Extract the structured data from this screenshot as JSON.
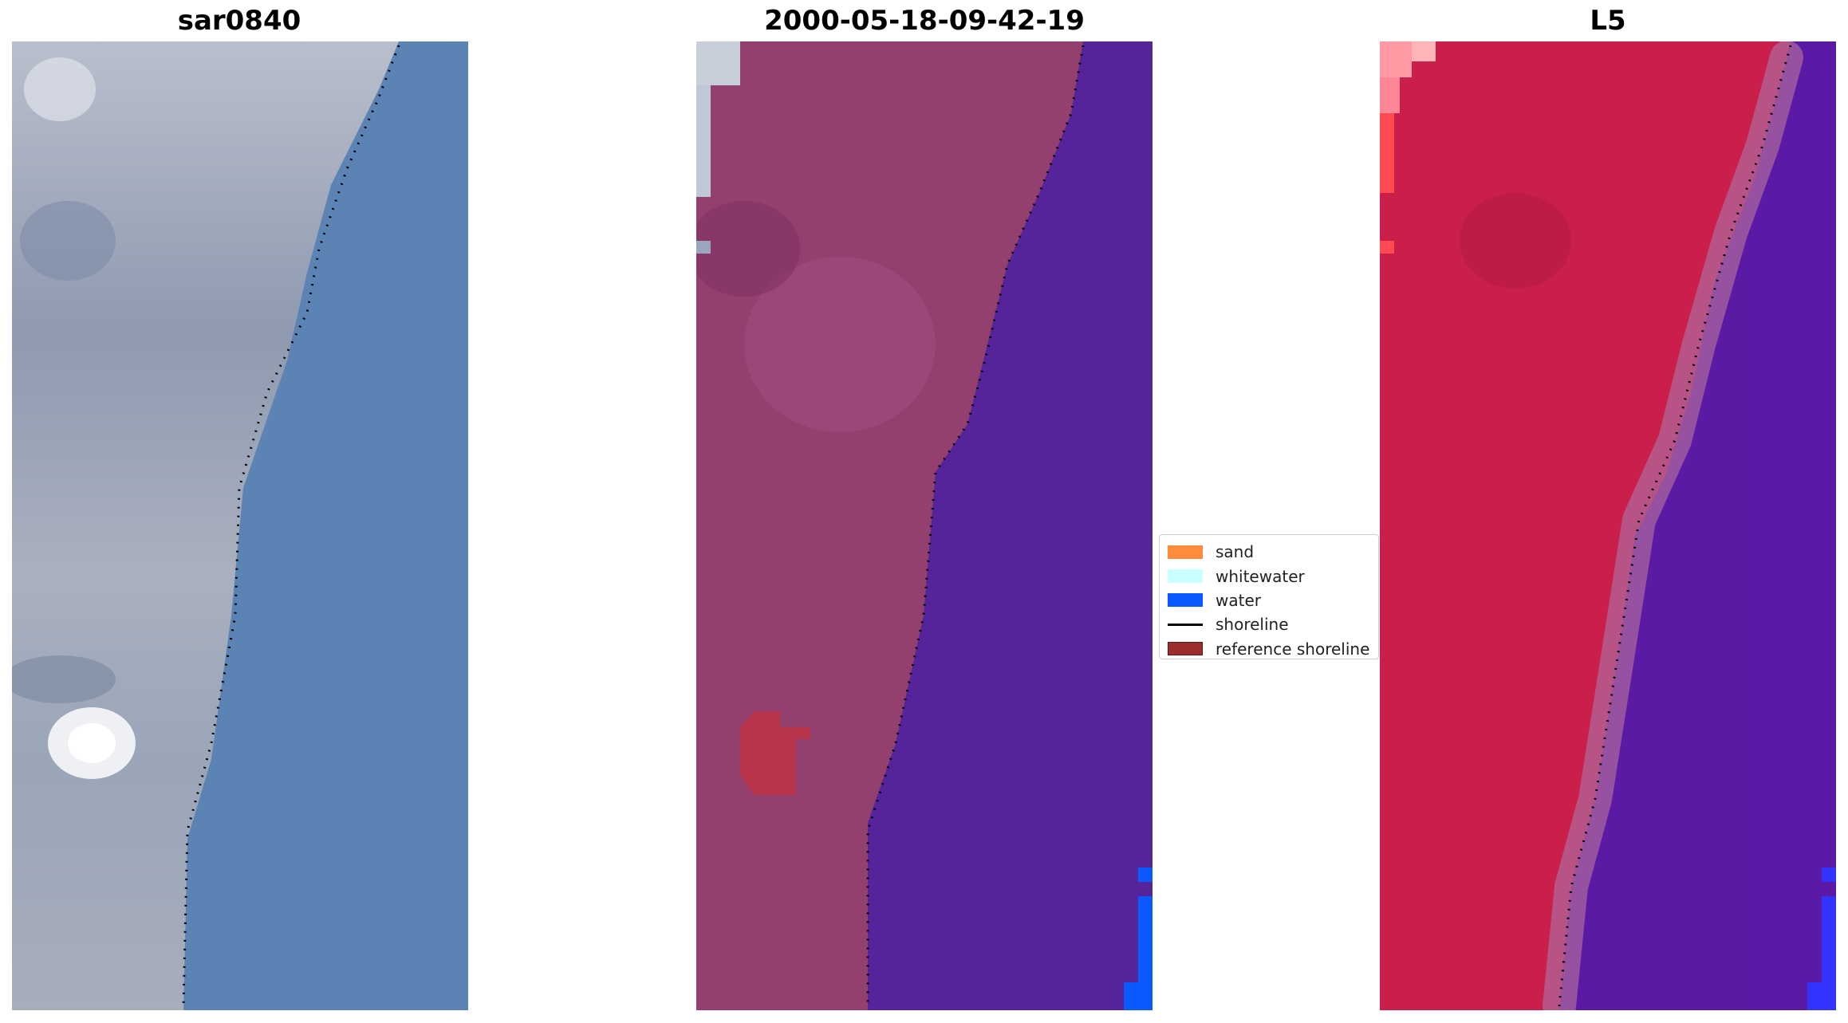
{
  "panels": [
    {
      "title": "sar0840",
      "style": "rgb"
    },
    {
      "title": "2000-05-18-09-42-19",
      "style": "classified"
    },
    {
      "title": "L5",
      "style": "ndwi"
    }
  ],
  "legend": {
    "items": [
      {
        "label": "sand",
        "color": "#ff8c3c",
        "kind": "box"
      },
      {
        "label": "whitewater",
        "color": "#c8ffff",
        "kind": "box"
      },
      {
        "label": "water",
        "color": "#0a5aff",
        "kind": "box"
      },
      {
        "label": "shoreline",
        "color": "#000000",
        "kind": "line"
      },
      {
        "label": "reference shoreline",
        "color": "#9b2d2d",
        "kind": "box"
      }
    ]
  },
  "colors": {
    "land_rgb": "#9ea6b6",
    "water_rgb": "#5b84b4",
    "land_classified": "#93406f",
    "water_classified": "#55239a",
    "land_ndwi": "#c91f4a",
    "water_ndwi": "#5a1aa4",
    "whitewater_patch": "#c0c8d6",
    "red_patch": "#b8344a"
  }
}
